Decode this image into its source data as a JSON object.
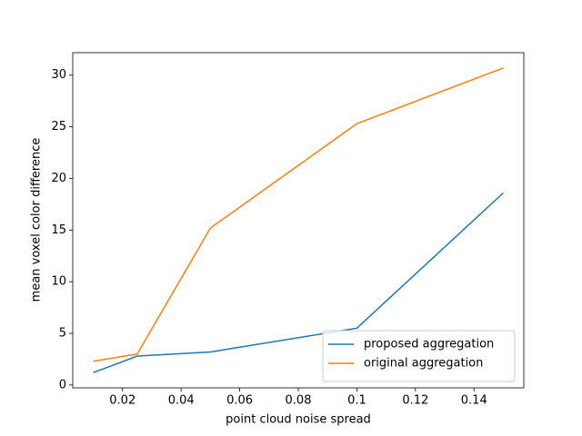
{
  "chart_data": {
    "type": "line",
    "x_label": "point cloud noise spread",
    "y_label": "mean voxel color difference",
    "x": [
      0.01,
      0.025,
      0.05,
      0.1,
      0.15
    ],
    "series": [
      {
        "name": "proposed aggregation",
        "color": "#1f77b4",
        "values": [
          1.2,
          2.8,
          3.2,
          5.5,
          18.6
        ]
      },
      {
        "name": "original aggregation",
        "color": "#ff7f0e",
        "values": [
          2.3,
          3.0,
          15.2,
          25.3,
          30.7
        ]
      }
    ],
    "xlim": [
      0.003,
      0.157
    ],
    "ylim": [
      -0.275,
      32.175
    ],
    "xticks": [
      0.02,
      0.04,
      0.06,
      0.08,
      0.1,
      0.12,
      0.14
    ],
    "yticks": [
      0,
      5,
      10,
      15,
      20,
      25,
      30
    ],
    "legend": "lower right"
  }
}
